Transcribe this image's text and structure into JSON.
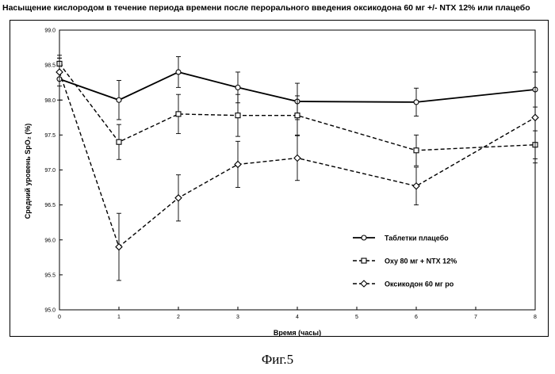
{
  "title": "Насыщение кислородом в течение периода времени после перорального введения оксикодона 60 мг +/- NTX 12% или плацебо",
  "caption": "Фиг.5",
  "chart_data": {
    "type": "line",
    "xlabel": "Время (часы)",
    "ylabel": "Средний уровень SpO₂ (%)",
    "xlim": [
      0,
      8
    ],
    "ylim": [
      95.0,
      99.0
    ],
    "x_ticks": [
      "0",
      "1",
      "2",
      "3",
      "4",
      "5",
      "6",
      "7",
      "8"
    ],
    "y_ticks": [
      "95.0",
      "95.5",
      "96.0",
      "96.5",
      "97.0",
      "97.5",
      "98.0",
      "98.5",
      "99.0"
    ],
    "grid": false,
    "legend_position": "right-center",
    "series": [
      {
        "name": "Таблетки плацебо",
        "marker": "circle",
        "line": "solid",
        "x": [
          0,
          1,
          2,
          3,
          4,
          6,
          8
        ],
        "values": [
          98.3,
          98.0,
          98.4,
          98.18,
          97.98,
          97.97,
          98.15
        ],
        "error": [
          0.3,
          0.28,
          0.22,
          0.22,
          0.26,
          0.2,
          0.25
        ]
      },
      {
        "name": "Oxy 80 мг  + NTX 12%",
        "marker": "square",
        "line": "dashed",
        "x": [
          0,
          1,
          2,
          3,
          4,
          6,
          8
        ],
        "values": [
          98.52,
          97.4,
          97.8,
          97.78,
          97.78,
          97.28,
          97.36
        ],
        "error": [
          0.12,
          0.25,
          0.28,
          0.3,
          0.28,
          0.22,
          0.2
        ]
      },
      {
        "name": "Оксикодон 60 мг po",
        "marker": "diamond",
        "line": "dashed",
        "x": [
          0,
          1,
          2,
          3,
          4,
          6,
          8
        ],
        "values": [
          98.4,
          95.9,
          96.6,
          97.08,
          97.17,
          96.77,
          97.75
        ],
        "error": [
          0.2,
          0.48,
          0.33,
          0.33,
          0.32,
          0.27,
          0.65
        ]
      }
    ]
  }
}
